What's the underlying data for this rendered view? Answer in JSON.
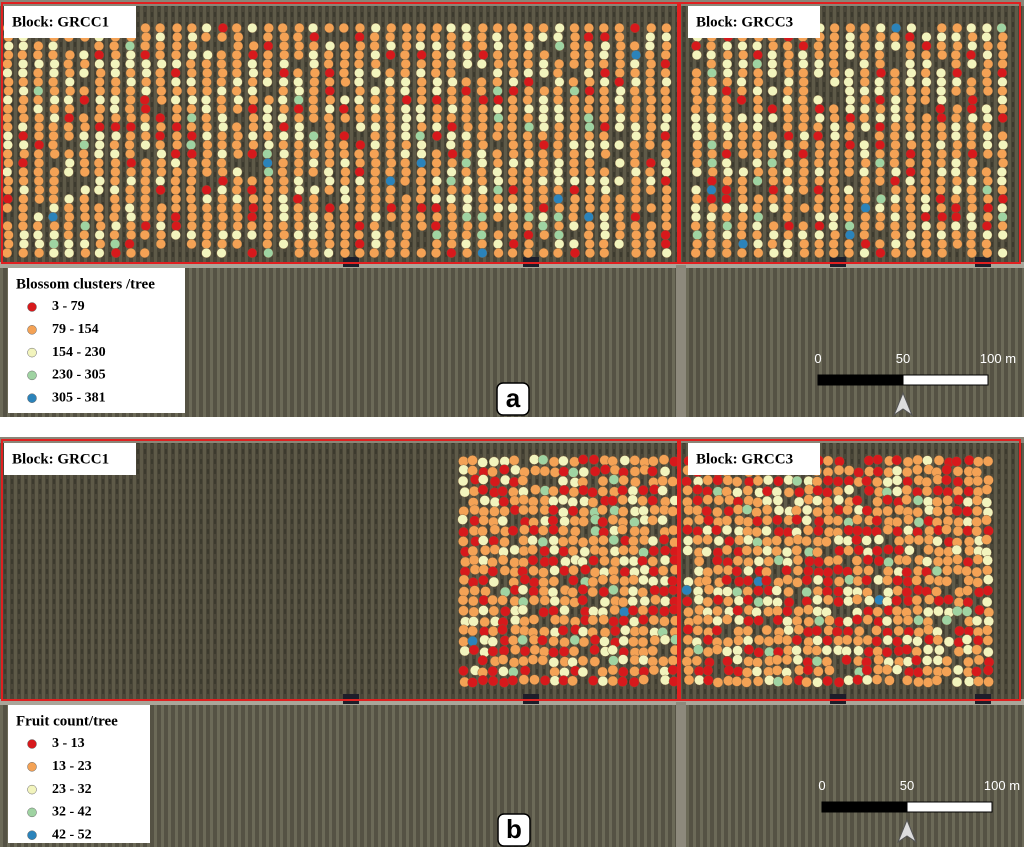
{
  "panels": [
    {
      "label": "a",
      "blocks": [
        "Block: GRCC1",
        "Block: GRCC3"
      ],
      "legend": {
        "title": "Blossom clusters /tree",
        "classes": [
          {
            "label": "3 - 79",
            "color": "#d7191c"
          },
          {
            "label": "79 - 154",
            "color": "#f4a255"
          },
          {
            "label": "154 - 230",
            "color": "#f2f4bd"
          },
          {
            "label": "230 - 305",
            "color": "#9fd3a2"
          },
          {
            "label": "305 - 381",
            "color": "#2b83ba"
          }
        ]
      },
      "scale": [
        "0",
        "50",
        "100 m"
      ]
    },
    {
      "label": "b",
      "blocks": [
        "Block: GRCC1",
        "Block: GRCC3"
      ],
      "legend": {
        "title": "Fruit count/tree",
        "classes": [
          {
            "label": "3 - 13",
            "color": "#d7191c"
          },
          {
            "label": "13 - 23",
            "color": "#f4a255"
          },
          {
            "label": "23 - 32",
            "color": "#f2f4bd"
          },
          {
            "label": "32 - 42",
            "color": "#9fd3a2"
          },
          {
            "label": "42 - 52",
            "color": "#2b83ba"
          }
        ]
      },
      "scale": [
        "0",
        "50",
        "100 m"
      ]
    }
  ]
}
